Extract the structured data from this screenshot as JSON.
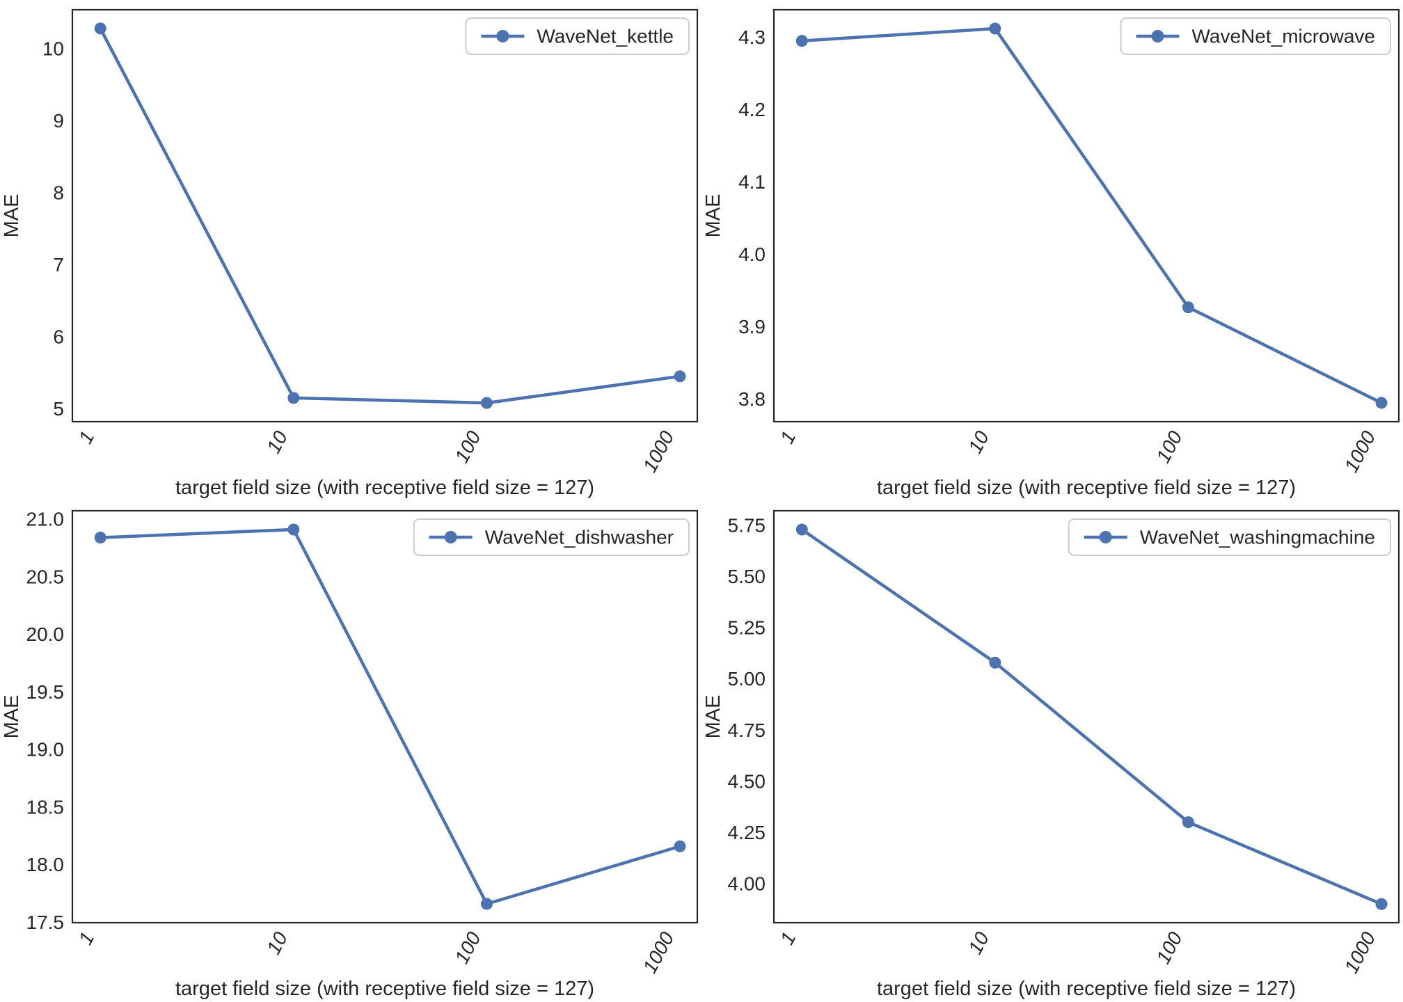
{
  "figure": {
    "line_color": "#4c72b0",
    "frame_color": "#262626",
    "text_color": "#262626",
    "legend_border_color": "#cccccc",
    "xlabel": "target field size (with receptive field size = 127)",
    "ylabel": "MAE"
  },
  "chart_data": [
    {
      "type": "line",
      "title": "",
      "xlabel": "target field size (with receptive field size = 127)",
      "ylabel": "MAE",
      "x_scale": "log",
      "x": [
        1,
        10,
        100,
        1000
      ],
      "x_tick_labels": [
        "1",
        "10",
        "100",
        "1000"
      ],
      "series": [
        {
          "name": "WaveNet_kettle",
          "values": [
            10.28,
            5.15,
            5.08,
            5.45
          ]
        }
      ],
      "legend": "WaveNet_kettle",
      "legend_position": "upper right",
      "grid": false,
      "ylim": [
        4.82,
        10.54
      ],
      "yticks": [
        5,
        6,
        7,
        8,
        9,
        10
      ],
      "ytick_labels": [
        "5",
        "6",
        "7",
        "8",
        "9",
        "10"
      ]
    },
    {
      "type": "line",
      "title": "",
      "xlabel": "target field size (with receptive field size = 127)",
      "ylabel": "MAE",
      "x_scale": "log",
      "x": [
        1,
        10,
        100,
        1000
      ],
      "x_tick_labels": [
        "1",
        "10",
        "100",
        "1000"
      ],
      "series": [
        {
          "name": "WaveNet_microwave",
          "values": [
            4.295,
            4.312,
            3.927,
            3.795
          ]
        }
      ],
      "legend": "WaveNet_microwave",
      "legend_position": "upper right",
      "grid": false,
      "ylim": [
        3.769,
        4.338
      ],
      "yticks": [
        3.8,
        3.9,
        4.0,
        4.1,
        4.2,
        4.3
      ],
      "ytick_labels": [
        "3.8",
        "3.9",
        "4.0",
        "4.1",
        "4.2",
        "4.3"
      ]
    },
    {
      "type": "line",
      "title": "",
      "xlabel": "target field size (with receptive field size = 127)",
      "ylabel": "MAE",
      "x_scale": "log",
      "x": [
        1,
        10,
        100,
        1000
      ],
      "x_tick_labels": [
        "1",
        "10",
        "100",
        "1000"
      ],
      "series": [
        {
          "name": "WaveNet_dishwasher",
          "values": [
            20.84,
            20.91,
            17.66,
            18.16
          ]
        }
      ],
      "legend": "WaveNet_dishwasher",
      "legend_position": "upper right",
      "grid": false,
      "ylim": [
        17.497,
        21.073
      ],
      "yticks": [
        17.5,
        18.0,
        18.5,
        19.0,
        19.5,
        20.0,
        20.5,
        21.0
      ],
      "ytick_labels": [
        "17.5",
        "18.0",
        "18.5",
        "19.0",
        "19.5",
        "20.0",
        "20.5",
        "21.0"
      ]
    },
    {
      "type": "line",
      "title": "",
      "xlabel": "target field size (with receptive field size = 127)",
      "ylabel": "MAE",
      "x_scale": "log",
      "x": [
        1,
        10,
        100,
        1000
      ],
      "x_tick_labels": [
        "1",
        "10",
        "100",
        "1000"
      ],
      "series": [
        {
          "name": "WaveNet_washingmachine",
          "values": [
            5.73,
            5.08,
            4.3,
            3.9
          ]
        }
      ],
      "legend": "WaveNet_washingmachine",
      "legend_position": "upper right",
      "grid": false,
      "ylim": [
        3.809,
        5.822
      ],
      "yticks": [
        4.0,
        4.25,
        4.5,
        4.75,
        5.0,
        5.25,
        5.5,
        5.75
      ],
      "ytick_labels": [
        "4.00",
        "4.25",
        "4.50",
        "4.75",
        "5.00",
        "5.25",
        "5.50",
        "5.75"
      ]
    }
  ]
}
